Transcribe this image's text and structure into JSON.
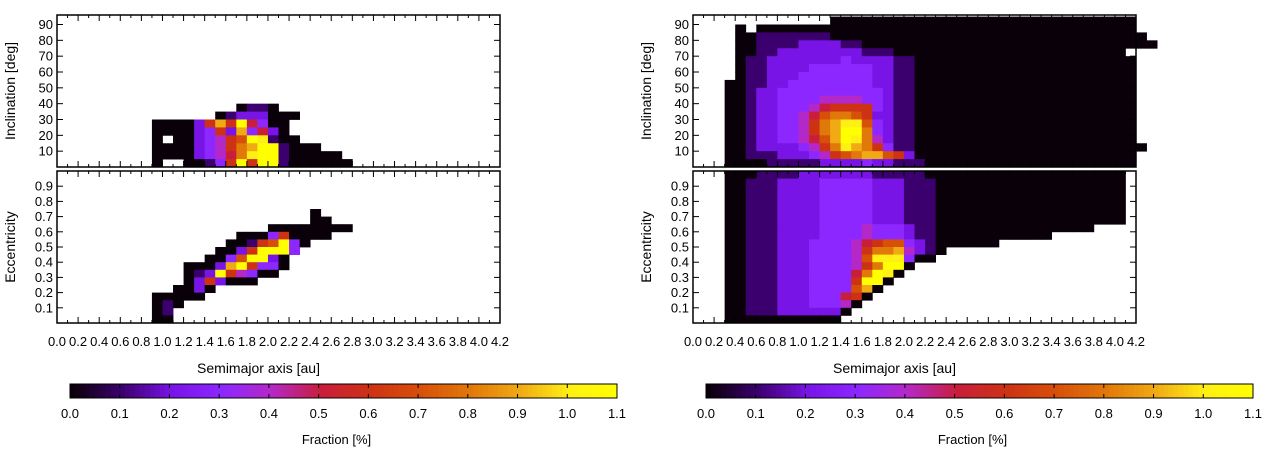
{
  "chart_data": {
    "type": "heatmap",
    "level_encoding": "'.' = empty bin; '0'-'9' = fraction 0.0-0.9 %; 'A' = 1.0 %; 'B' = 1.1 %",
    "x": {
      "label": "Semimajor axis [au]",
      "range": [
        0.0,
        4.2
      ],
      "bin": 0.1,
      "ticks": [
        "0.0",
        "0.2",
        "0.4",
        "0.6",
        "0.8",
        "1.0",
        "1.2",
        "1.4",
        "1.6",
        "1.8",
        "2.0",
        "2.2",
        "2.4",
        "2.6",
        "2.8",
        "3.0",
        "3.2",
        "3.4",
        "3.6",
        "3.8",
        "4.0",
        "4.2"
      ]
    },
    "inclination_axis": {
      "label": "Inclination [deg]",
      "range": [
        0,
        96
      ],
      "bin": 5,
      "ticks": [
        "10",
        "20",
        "30",
        "40",
        "50",
        "60",
        "70",
        "80",
        "90"
      ]
    },
    "eccentricity_axis": {
      "label": "Eccentricity",
      "range": [
        0,
        1.0
      ],
      "bin": 0.05,
      "ticks": [
        "0.1",
        "0.2",
        "0.3",
        "0.4",
        "0.5",
        "0.6",
        "0.7",
        "0.8",
        "0.9"
      ]
    },
    "colorbar": {
      "label": "Fraction [%]",
      "range": [
        0.0,
        1.1
      ],
      "ticks": [
        "0.0",
        "0.1",
        "0.2",
        "0.3",
        "0.4",
        "0.5",
        "0.6",
        "0.7",
        "0.8",
        "0.9",
        "1.0",
        "1.1"
      ]
    },
    "panels": [
      {
        "name": "left",
        "inclination_rows_top_to_bottom": [
          "",
          "",
          "",
          "",
          "",
          "",
          "",
          "",
          "",
          "",
          "",
          "",
          ".................0110",
          "...............01222000",
          ".........00002696B5300",
          ".........0000236293520",
          ".........0.0023467BA100",
          ".........0000234689BB1000",
          ".........000023458ABB100000",
          ".........0..00136B6BB1000000"
        ],
        "eccentricity_rows_top_to_bottom": [
          "",
          "",
          "",
          "",
          "",
          "........................0",
          "........................00",
          "....................00000000",
          ".................000360000",
          "................00167B30",
          "...............0026BBB3",
          "..............0037BB20",
          "............00029B6330",
          "............012B64300",
          "............0262000",
          "...........0020",
          ".........00000",
          ".........010",
          ".........01",
          ".........00"
        ]
      },
      {
        "name": "right",
        "inclination_rows_top_to_bottom": [
          ".............00000000000000000000000000000",
          "....0.000000000000000000000000000000000000",
          "....001111111000000000000000000000000000000",
          "....0011112222110000000000000000000000000000",
          "....0011222222221110000000000000000000000",
          "....01122222223222211000000000000000000000",
          "....01122223333332211000000000000000000000",
          "....01122233333332211000000000000000000000",
          "...001122333333332211000000000000000000000",
          "...001223333333333211000000000000000000000",
          "...001223333444433211000000000000000000000",
          "...001223334566663211000000000000000000000",
          "...001223345788762211000000000000000000000",
          "...00122334689AA73211000000000000000000000",
          "...00122334689BB83211000000000000000000000",
          "...00122334579BA84211000000000000000000000",
          "...00122223468A9863110000000000000000000000",
          "...001112223467899762000000000000000000000",
          "...000011111222232211100000000000000000000"
        ],
        "eccentricity_rows_top_to_bottom": [
          "...00011112222222111110000000000000000000",
          "...00111222233333222111000000000000000000",
          "...00111222233333222111000000000000000000",
          "...00111222233333222111000000000000000000",
          "...00111222233333222111000000000000000000",
          "...00111222233333222111000000000000000000",
          "...00111222233333222111000000000000000000.",
          "...00111222233334333211000000000000000.....",
          "...0011122223333433321100000000000.........",
          "...00111222333345677321000000.............",
          "...001112223333468894210..................",
          "...00111222333347AAA300",
          "...001112223333468BB0",
          "...00111222333358BA0",
          "...0011122233336BB0",
          "...001112223333790",
          "...00111222333560",
          "...0011122233340",
          "...001112222220",
          "...00000000000"
        ]
      }
    ]
  }
}
